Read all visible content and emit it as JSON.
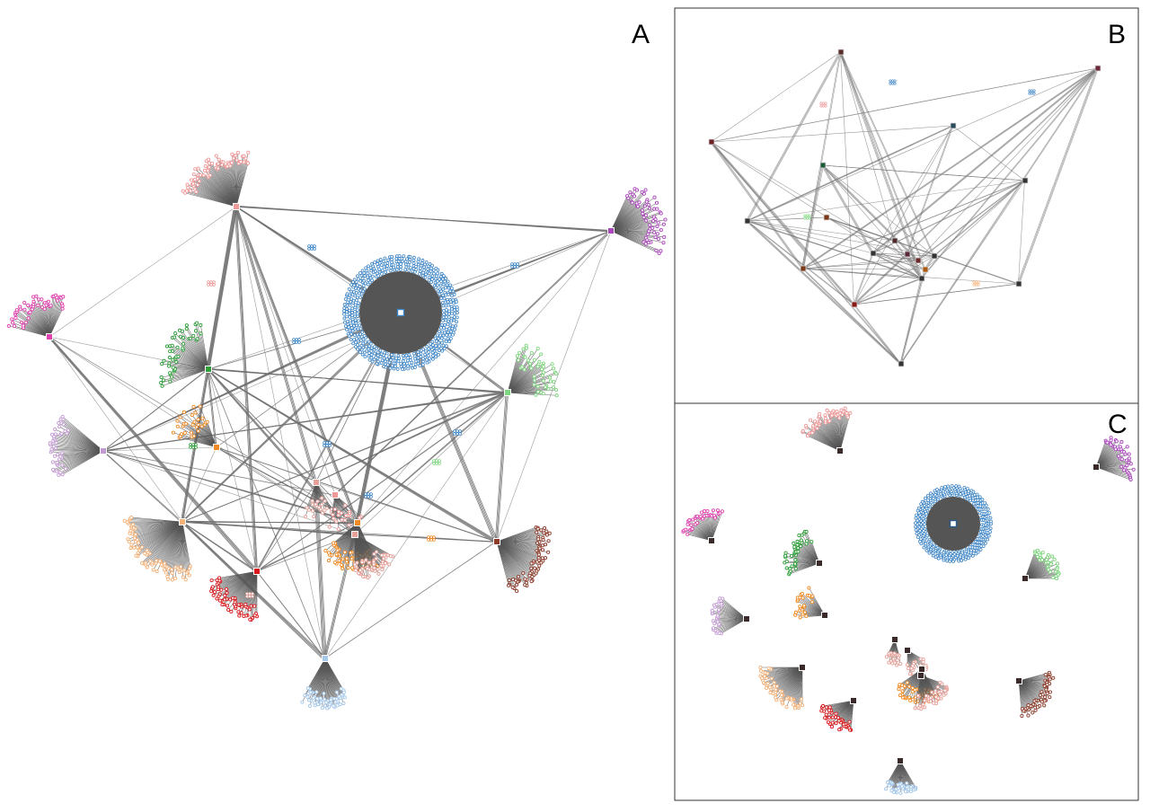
{
  "panels": [
    {
      "id": "A",
      "label": "A"
    },
    {
      "id": "B",
      "label": "B"
    },
    {
      "id": "C",
      "label": "C"
    }
  ],
  "colors": {
    "blue": "#3d85c6",
    "pink": "#ef9a9a",
    "purple": "#ab47bc",
    "magenta": "#e040b0",
    "green": "#2e9d3a",
    "lightgreen": "#7ed67e",
    "lavender": "#c39bd3",
    "orange": "#f08a24",
    "peach": "#f5b27a",
    "red": "#d7191c",
    "brown": "#8c3b2a",
    "lightblue": "#a6c8ea",
    "salmon": "#e6a19a",
    "edge": "#6b6b6b",
    "hub_dark": "#4a2a2a"
  }
}
